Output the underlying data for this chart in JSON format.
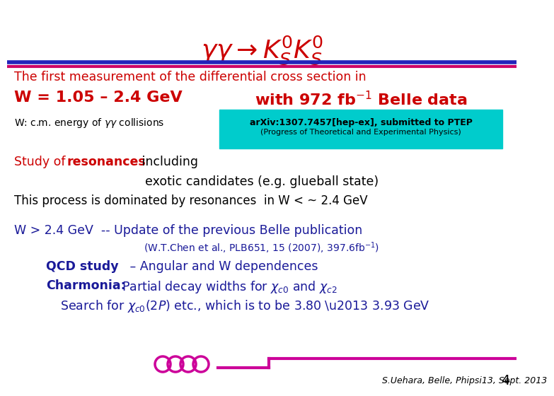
{
  "bg_color": "#ffffff",
  "title_color": "#cc0000",
  "red_color": "#cc0000",
  "dark_blue": "#1a1a99",
  "black": "#000000",
  "cyan_bg": "#00cccc",
  "line_blue": "#2222bb",
  "line_pink": "#cc0066",
  "coil_color": "#cc0099",
  "slide_number": "4",
  "footer_text": "S.Uehara, Belle, Phipsi13, Sept. 2013"
}
